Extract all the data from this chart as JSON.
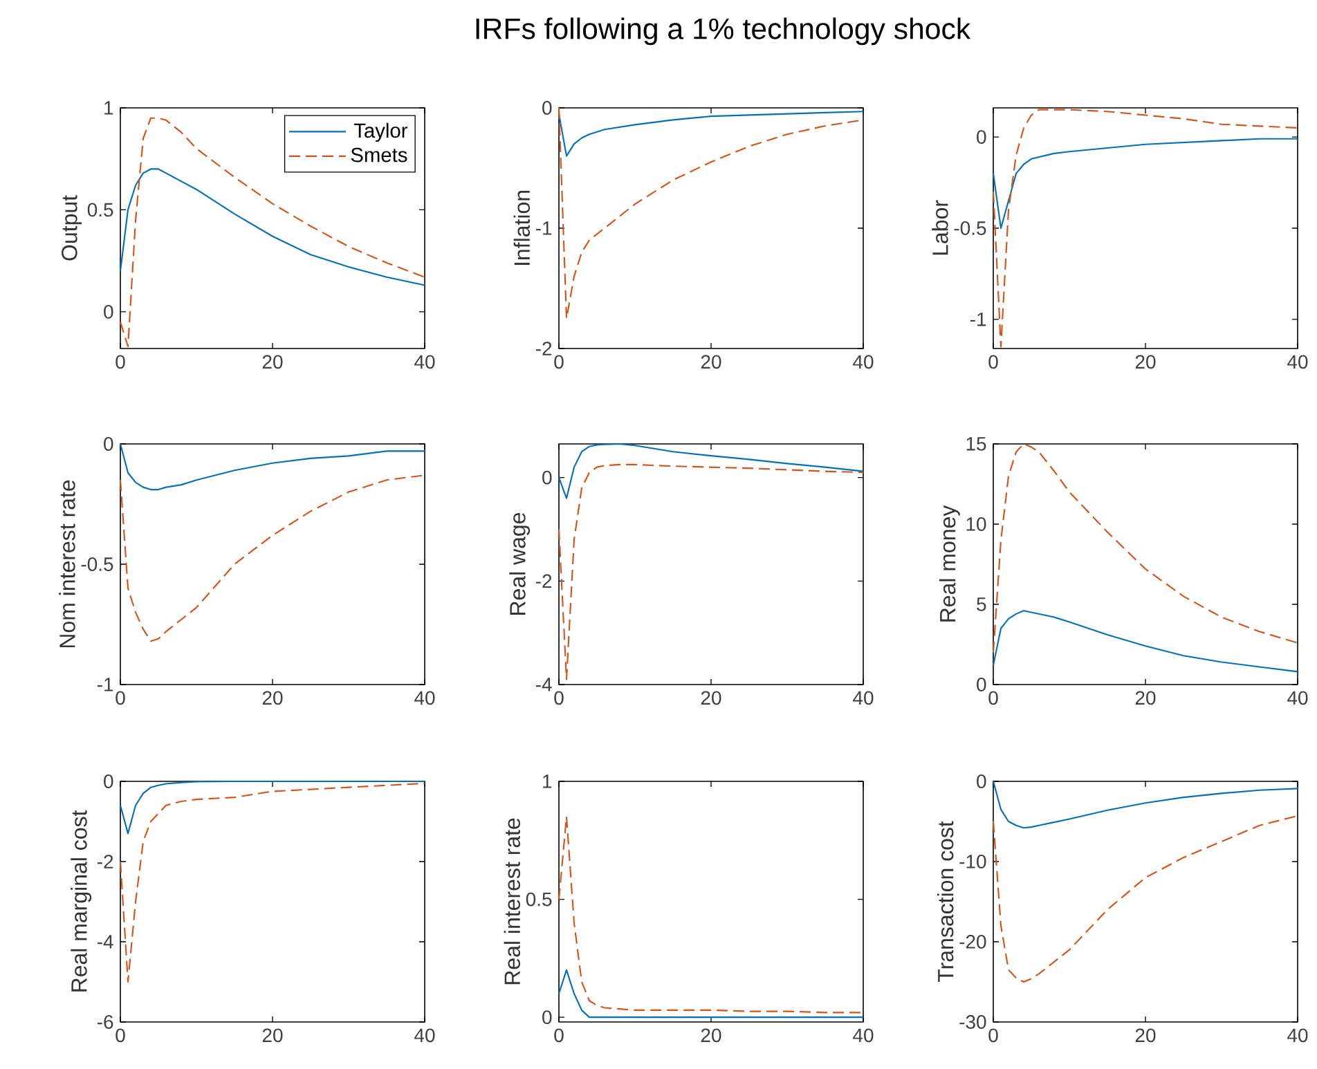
{
  "chart_data": [
    {
      "type": "line",
      "ylabel": "Output",
      "xlim": [
        0,
        40
      ],
      "xticks": [
        0,
        20,
        40
      ],
      "ylim": [
        -0.18,
        1
      ],
      "yticks": [
        0,
        0.5,
        1
      ],
      "legend": "top right",
      "x": [
        0,
        1,
        2,
        3,
        4,
        5,
        6,
        8,
        10,
        15,
        20,
        25,
        30,
        35,
        40
      ],
      "series": [
        {
          "name": "Taylor",
          "color": "#0072bd",
          "line_style": "solid",
          "values": [
            0.2,
            0.5,
            0.62,
            0.68,
            0.7,
            0.7,
            0.68,
            0.64,
            0.6,
            0.48,
            0.37,
            0.28,
            0.22,
            0.17,
            0.13
          ]
        },
        {
          "name": "Smets",
          "color": "#d95319",
          "line_style": "dashed",
          "values": [
            -0.05,
            -0.17,
            0.45,
            0.85,
            0.95,
            0.95,
            0.94,
            0.88,
            0.8,
            0.66,
            0.53,
            0.42,
            0.32,
            0.24,
            0.17
          ]
        }
      ]
    },
    {
      "type": "line",
      "title": "IRFs following a 1% technology shock",
      "ylabel": "Inflation",
      "xlim": [
        0,
        40
      ],
      "xticks": [
        0,
        20,
        40
      ],
      "ylim": [
        -2,
        0
      ],
      "yticks": [
        -2,
        -1,
        0
      ],
      "x": [
        0,
        1,
        2,
        3,
        4,
        5,
        6,
        8,
        10,
        15,
        20,
        25,
        30,
        35,
        40
      ],
      "series": [
        {
          "color": "#0072bd",
          "line_style": "solid",
          "values": [
            -0.05,
            -0.4,
            -0.3,
            -0.25,
            -0.22,
            -0.2,
            -0.18,
            -0.16,
            -0.14,
            -0.1,
            -0.07,
            -0.06,
            -0.05,
            -0.04,
            -0.03
          ]
        },
        {
          "color": "#d95319",
          "line_style": "dashed",
          "values": [
            0,
            -1.75,
            -1.4,
            -1.2,
            -1.1,
            -1.05,
            -1.0,
            -0.9,
            -0.8,
            -0.6,
            -0.45,
            -0.32,
            -0.22,
            -0.15,
            -0.1
          ]
        }
      ]
    },
    {
      "type": "line",
      "ylabel": "Labor",
      "xlim": [
        0,
        40
      ],
      "xticks": [
        0,
        20,
        40
      ],
      "ylim": [
        -1.16,
        0.16
      ],
      "yticks": [
        -1,
        -0.5,
        0
      ],
      "x": [
        0,
        1,
        2,
        3,
        4,
        5,
        6,
        8,
        10,
        15,
        20,
        25,
        30,
        35,
        40
      ],
      "series": [
        {
          "color": "#0072bd",
          "line_style": "solid",
          "values": [
            -0.2,
            -0.5,
            -0.35,
            -0.2,
            -0.15,
            -0.12,
            -0.11,
            -0.09,
            -0.08,
            -0.06,
            -0.04,
            -0.03,
            -0.02,
            -0.01,
            -0.01
          ]
        },
        {
          "color": "#d95319",
          "line_style": "dashed",
          "values": [
            -0.3,
            -1.15,
            -0.4,
            -0.1,
            0.05,
            0.12,
            0.15,
            0.15,
            0.15,
            0.14,
            0.12,
            0.1,
            0.07,
            0.06,
            0.05
          ]
        }
      ]
    },
    {
      "type": "line",
      "ylabel": "Nom interest rate",
      "xlim": [
        0,
        40
      ],
      "xticks": [
        0,
        20,
        40
      ],
      "ylim": [
        -1,
        0
      ],
      "yticks": [
        -1,
        -0.5,
        0
      ],
      "x": [
        0,
        1,
        2,
        3,
        4,
        5,
        6,
        8,
        10,
        15,
        20,
        25,
        30,
        35,
        40
      ],
      "series": [
        {
          "color": "#0072bd",
          "line_style": "solid",
          "values": [
            0,
            -0.12,
            -0.16,
            -0.18,
            -0.19,
            -0.19,
            -0.18,
            -0.17,
            -0.15,
            -0.11,
            -0.08,
            -0.06,
            -0.05,
            -0.03,
            -0.03
          ]
        },
        {
          "color": "#d95319",
          "line_style": "dashed",
          "values": [
            -0.15,
            -0.6,
            -0.7,
            -0.77,
            -0.82,
            -0.81,
            -0.78,
            -0.73,
            -0.68,
            -0.5,
            -0.38,
            -0.28,
            -0.2,
            -0.15,
            -0.13
          ]
        }
      ]
    },
    {
      "type": "line",
      "ylabel": "Real wage",
      "xlim": [
        0,
        40
      ],
      "xticks": [
        0,
        20,
        40
      ],
      "ylim": [
        -4,
        0.65
      ],
      "yticks": [
        -4,
        -2,
        0
      ],
      "x": [
        0,
        1,
        2,
        3,
        4,
        5,
        6,
        8,
        10,
        15,
        20,
        25,
        30,
        35,
        40
      ],
      "series": [
        {
          "color": "#0072bd",
          "line_style": "solid",
          "values": [
            0,
            -0.4,
            0.2,
            0.5,
            0.6,
            0.63,
            0.64,
            0.65,
            0.62,
            0.5,
            0.42,
            0.35,
            0.27,
            0.2,
            0.12
          ]
        },
        {
          "color": "#d95319",
          "line_style": "dashed",
          "values": [
            -1,
            -3.9,
            -1.2,
            -0.2,
            0.1,
            0.2,
            0.23,
            0.25,
            0.25,
            0.22,
            0.2,
            0.18,
            0.15,
            0.12,
            0.1
          ]
        }
      ]
    },
    {
      "type": "line",
      "ylabel": "Real money",
      "xlim": [
        0,
        40
      ],
      "xticks": [
        0,
        20,
        40
      ],
      "ylim": [
        0,
        15
      ],
      "yticks": [
        0,
        5,
        10,
        15
      ],
      "x": [
        0,
        1,
        2,
        3,
        4,
        5,
        6,
        8,
        10,
        15,
        20,
        25,
        30,
        35,
        40
      ],
      "series": [
        {
          "color": "#0072bd",
          "line_style": "solid",
          "values": [
            1.2,
            3.5,
            4.1,
            4.4,
            4.6,
            4.5,
            4.4,
            4.2,
            3.9,
            3.1,
            2.4,
            1.8,
            1.4,
            1.1,
            0.8
          ]
        },
        {
          "color": "#d95319",
          "line_style": "dashed",
          "values": [
            2,
            9,
            13,
            14.5,
            15,
            14.8,
            14.5,
            13.3,
            12,
            9.5,
            7.2,
            5.5,
            4.2,
            3.3,
            2.6
          ]
        }
      ]
    },
    {
      "type": "line",
      "ylabel": "Real marginal cost",
      "xlim": [
        0,
        40
      ],
      "xticks": [
        0,
        20,
        40
      ],
      "ylim": [
        -6,
        0
      ],
      "yticks": [
        -6,
        -4,
        -2,
        0
      ],
      "x": [
        0,
        1,
        2,
        3,
        4,
        5,
        6,
        8,
        10,
        15,
        20,
        25,
        30,
        35,
        40
      ],
      "series": [
        {
          "color": "#0072bd",
          "line_style": "solid",
          "values": [
            -0.6,
            -1.3,
            -0.6,
            -0.3,
            -0.15,
            -0.1,
            -0.06,
            -0.03,
            -0.01,
            0,
            0,
            0,
            0,
            0,
            0
          ]
        },
        {
          "color": "#d95319",
          "line_style": "dashed",
          "values": [
            -2,
            -5,
            -3,
            -1.5,
            -1,
            -0.8,
            -0.6,
            -0.5,
            -0.45,
            -0.4,
            -0.25,
            -0.2,
            -0.15,
            -0.1,
            -0.05
          ]
        }
      ]
    },
    {
      "type": "line",
      "ylabel": "Real interest rate",
      "xlim": [
        0,
        40
      ],
      "xticks": [
        0,
        20,
        40
      ],
      "ylim": [
        -0.02,
        1
      ],
      "yticks": [
        0,
        0.5,
        1
      ],
      "x": [
        0,
        1,
        2,
        3,
        4,
        5,
        6,
        8,
        10,
        15,
        20,
        25,
        30,
        35,
        40
      ],
      "series": [
        {
          "color": "#0072bd",
          "line_style": "solid",
          "values": [
            0.1,
            0.2,
            0.1,
            0.03,
            0,
            0,
            0,
            0,
            0,
            0,
            0,
            0,
            0,
            0,
            0
          ]
        },
        {
          "color": "#d95319",
          "line_style": "dashed",
          "values": [
            0.5,
            0.85,
            0.4,
            0.15,
            0.07,
            0.05,
            0.04,
            0.035,
            0.03,
            0.03,
            0.03,
            0.025,
            0.025,
            0.02,
            0.02
          ]
        }
      ]
    },
    {
      "type": "line",
      "ylabel": "Transaction cost",
      "xlim": [
        0,
        40
      ],
      "xticks": [
        0,
        20,
        40
      ],
      "ylim": [
        -30,
        0
      ],
      "yticks": [
        -30,
        -20,
        -10,
        0
      ],
      "x": [
        0,
        1,
        2,
        3,
        4,
        5,
        6,
        8,
        10,
        15,
        20,
        25,
        30,
        35,
        40
      ],
      "series": [
        {
          "color": "#0072bd",
          "line_style": "solid",
          "values": [
            0,
            -3.5,
            -5,
            -5.5,
            -5.8,
            -5.7,
            -5.5,
            -5.1,
            -4.7,
            -3.6,
            -2.7,
            -2,
            -1.5,
            -1.1,
            -0.9
          ]
        },
        {
          "color": "#d95319",
          "line_style": "dashed",
          "values": [
            -5,
            -18,
            -23.5,
            -24.5,
            -25,
            -24.6,
            -24,
            -22.5,
            -21,
            -16,
            -12,
            -9.5,
            -7.5,
            -5.5,
            -4.3
          ]
        }
      ]
    }
  ]
}
